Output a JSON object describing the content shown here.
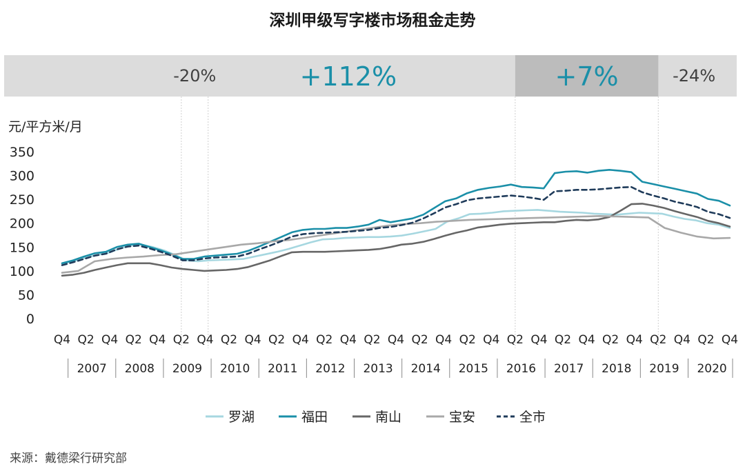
{
  "chart_data": {
    "type": "line",
    "title": "深圳甲级写字楼市场租金走势",
    "ylabel": "元/平方米/月",
    "xlabel": "",
    "ylim": [
      0,
      350
    ],
    "yticks": [
      0,
      50,
      100,
      150,
      200,
      250,
      300,
      350
    ],
    "grid": false,
    "legend_position": "bottom",
    "x_tick_labels": [
      "Q4",
      "Q2",
      "Q4",
      "Q2",
      "Q4",
      "Q2",
      "Q4",
      "Q2",
      "Q4",
      "Q2",
      "Q4",
      "Q2",
      "Q4",
      "Q2",
      "Q4",
      "Q2",
      "Q4",
      "Q2",
      "Q4",
      "Q2",
      "Q4",
      "Q2",
      "Q4",
      "Q2",
      "Q4",
      "Q2",
      "Q4",
      "Q2",
      "Q4"
    ],
    "years": [
      "2007",
      "2008",
      "2009",
      "2010",
      "2011",
      "2012",
      "2013",
      "2014",
      "2015",
      "2016",
      "2017",
      "2018",
      "2019",
      "2020"
    ],
    "periods": [
      {
        "label": "-20%",
        "from_quarter": 6,
        "to_quarter": 10,
        "shade": "dark",
        "color": "#404040"
      },
      {
        "label": "+112%",
        "from_quarter": 10,
        "to_quarter": 38,
        "shade": "light",
        "color": "#1a8fa8"
      },
      {
        "label": "+7%",
        "from_quarter": 38,
        "to_quarter": 50,
        "shade": "dark",
        "color": "#1a8fa8"
      },
      {
        "label": "-24%",
        "from_quarter": 50,
        "to_quarter": 56,
        "shade": "light",
        "color": "#404040"
      }
    ],
    "series": [
      {
        "name": "罗湖",
        "color": "#a6d7e0",
        "dashed": false,
        "values": [
          115,
          120,
          127,
          133,
          137,
          146,
          153,
          155,
          150,
          143,
          133,
          122,
          120,
          122,
          123,
          124,
          125,
          130,
          135,
          140,
          146,
          153,
          160,
          166,
          167,
          169,
          170,
          171,
          171,
          172,
          174,
          178,
          183,
          188,
          203,
          210,
          219,
          220,
          222,
          225,
          226,
          227,
          228,
          226,
          224,
          223,
          222,
          220,
          219,
          218,
          220,
          222,
          221,
          220,
          214,
          209,
          206,
          200,
          197,
          190
        ]
      },
      {
        "name": "福田",
        "color": "#1a8fa8",
        "dashed": false,
        "values": [
          116,
          122,
          130,
          137,
          140,
          150,
          155,
          157,
          150,
          143,
          135,
          125,
          125,
          130,
          132,
          134,
          136,
          142,
          151,
          161,
          171,
          181,
          186,
          188,
          188,
          190,
          190,
          193,
          197,
          207,
          202,
          206,
          210,
          218,
          232,
          246,
          252,
          263,
          270,
          274,
          277,
          281,
          276,
          275,
          273,
          305,
          308,
          309,
          306,
          310,
          312,
          310,
          307,
          287,
          282,
          277,
          272,
          267,
          262,
          251,
          247,
          237
        ]
      },
      {
        "name": "南山",
        "color": "#666666",
        "dashed": false,
        "values": [
          90,
          92,
          96,
          102,
          107,
          112,
          116,
          116,
          116,
          112,
          107,
          104,
          102,
          100,
          101,
          102,
          104,
          108,
          115,
          122,
          131,
          139,
          140,
          140,
          140,
          141,
          142,
          143,
          144,
          146,
          150,
          155,
          157,
          161,
          167,
          174,
          180,
          185,
          191,
          194,
          197,
          199,
          200,
          201,
          202,
          202,
          205,
          207,
          206,
          208,
          213,
          226,
          240,
          241,
          237,
          232,
          225,
          219,
          213,
          205,
          200,
          193
        ]
      },
      {
        "name": "宝安",
        "color": "#a8a8a8",
        "dashed": false,
        "values": [
          96,
          100,
          120,
          125,
          128,
          130,
          133,
          135,
          140,
          145,
          150,
          155,
          158,
          162,
          165,
          170,
          175,
          180,
          185,
          190,
          195,
          198,
          200,
          203,
          205,
          207,
          208,
          209,
          210,
          211,
          212,
          213,
          214,
          215,
          214,
          213,
          212,
          190,
          180,
          172,
          168,
          169
        ]
      },
      {
        "name": "全市",
        "color": "#1f3b5a",
        "dashed": true,
        "values": [
          112,
          118,
          125,
          132,
          136,
          145,
          151,
          153,
          147,
          140,
          132,
          122,
          122,
          126,
          128,
          129,
          130,
          136,
          145,
          153,
          162,
          172,
          177,
          179,
          180,
          181,
          182,
          184,
          186,
          190,
          192,
          196,
          201,
          210,
          221,
          233,
          240,
          248,
          252,
          254,
          256,
          258,
          256,
          253,
          249,
          267,
          268,
          270,
          270,
          271,
          273,
          275,
          276,
          265,
          258,
          252,
          245,
          240,
          234,
          224,
          219,
          211
        ]
      }
    ],
    "source_note": "来源：戴德梁行研究部"
  }
}
